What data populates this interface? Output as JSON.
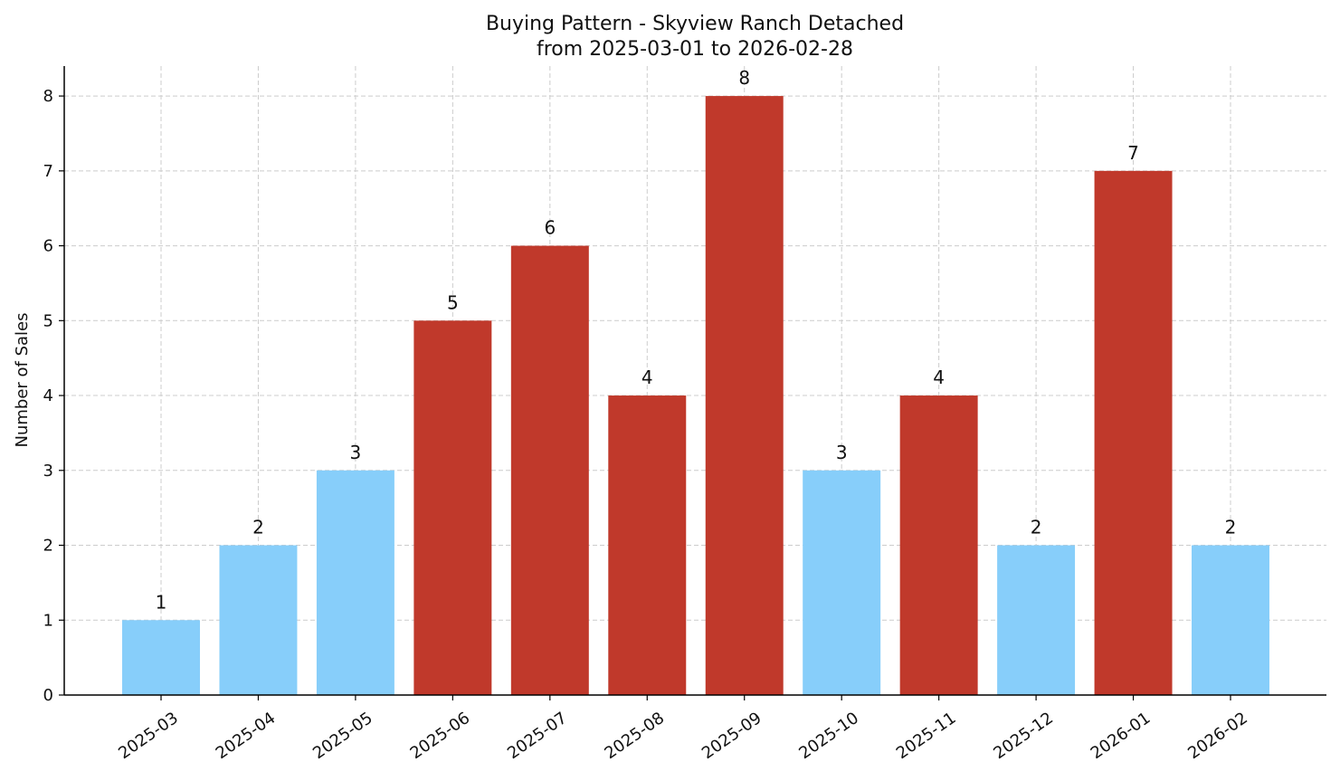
{
  "chart_data": {
    "type": "bar",
    "title": "Buying Pattern - Skyview Ranch Detached",
    "subtitle": "from 2025-03-01 to 2026-02-28",
    "xlabel": "",
    "ylabel": "Number of Sales",
    "categories": [
      "2025-03",
      "2025-04",
      "2025-05",
      "2025-06",
      "2025-07",
      "2025-08",
      "2025-09",
      "2025-10",
      "2025-11",
      "2025-12",
      "2026-01",
      "2026-02"
    ],
    "values": [
      1,
      2,
      3,
      5,
      6,
      4,
      8,
      3,
      4,
      2,
      7,
      2
    ],
    "bar_colors": [
      "#87CEFA",
      "#87CEFA",
      "#87CEFA",
      "#C0392B",
      "#C0392B",
      "#C0392B",
      "#C0392B",
      "#87CEFA",
      "#C0392B",
      "#87CEFA",
      "#C0392B",
      "#87CEFA"
    ],
    "ylim": [
      0,
      8.4
    ],
    "yticks": [
      0,
      1,
      2,
      3,
      4,
      5,
      6,
      7,
      8
    ],
    "grid": true,
    "data_labels": true
  }
}
